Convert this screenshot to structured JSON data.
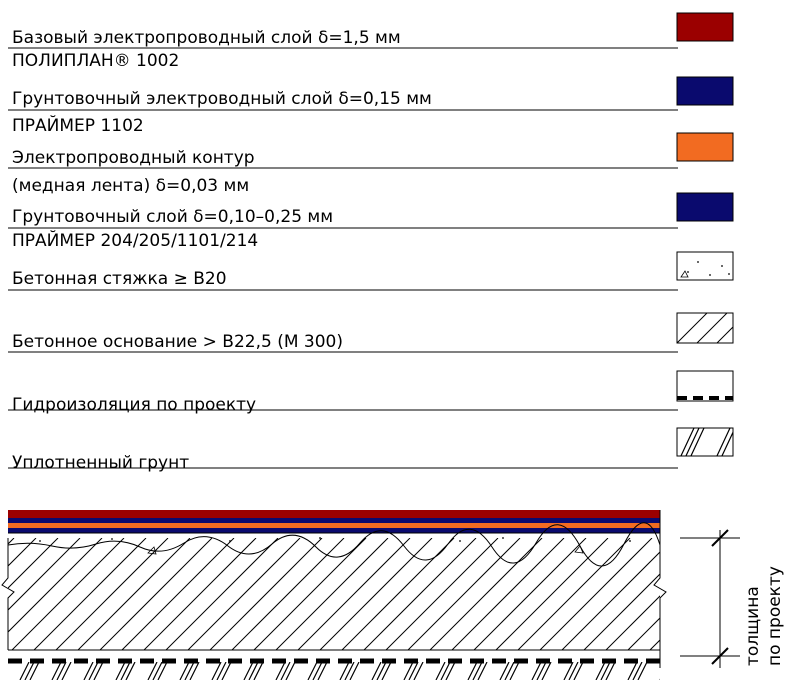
{
  "legend": {
    "layers": [
      {
        "id": "base-conductive",
        "line1": "Базовый электропроводный слой δ=1,5 мм",
        "line2": "ПОЛИПЛАН® 1002",
        "color": "#9b0000",
        "swatch": "solid"
      },
      {
        "id": "primer-conductive",
        "line1": "Грунтовочный электроводный слой δ=0,15 мм",
        "line2": "ПРАЙМЕР 1102",
        "color": "#0a0a6e",
        "swatch": "solid"
      },
      {
        "id": "conductive-contour",
        "line1": "Электропроводный контур",
        "line2": "(медная лента) δ=0,03 мм",
        "color": "#f26b21",
        "swatch": "solid"
      },
      {
        "id": "primer",
        "line1": "Грунтовочный слой δ=0,10–0,25 мм",
        "line2": "ПРАЙМЕР 204/205/1101/214",
        "color": "#0a0a6e",
        "swatch": "solid"
      },
      {
        "id": "screed",
        "line1": "Бетонная стяжка ≥ В20",
        "line2": "",
        "color": "#ffffff",
        "swatch": "dots"
      },
      {
        "id": "concrete-base",
        "line1": "Бетонное основание > В22,5 (М 300)",
        "line2": "",
        "color": "#ffffff",
        "swatch": "hatch"
      },
      {
        "id": "waterproofing",
        "line1": "Гидроизоляция по проекту",
        "line2": "",
        "color": "#ffffff",
        "swatch": "dashed"
      },
      {
        "id": "compacted-soil",
        "line1": "Уплотненный грунт",
        "line2": "",
        "color": "#ffffff",
        "swatch": "soil"
      }
    ]
  },
  "dimension": {
    "line1": "толщина",
    "line2": "по проекту"
  }
}
